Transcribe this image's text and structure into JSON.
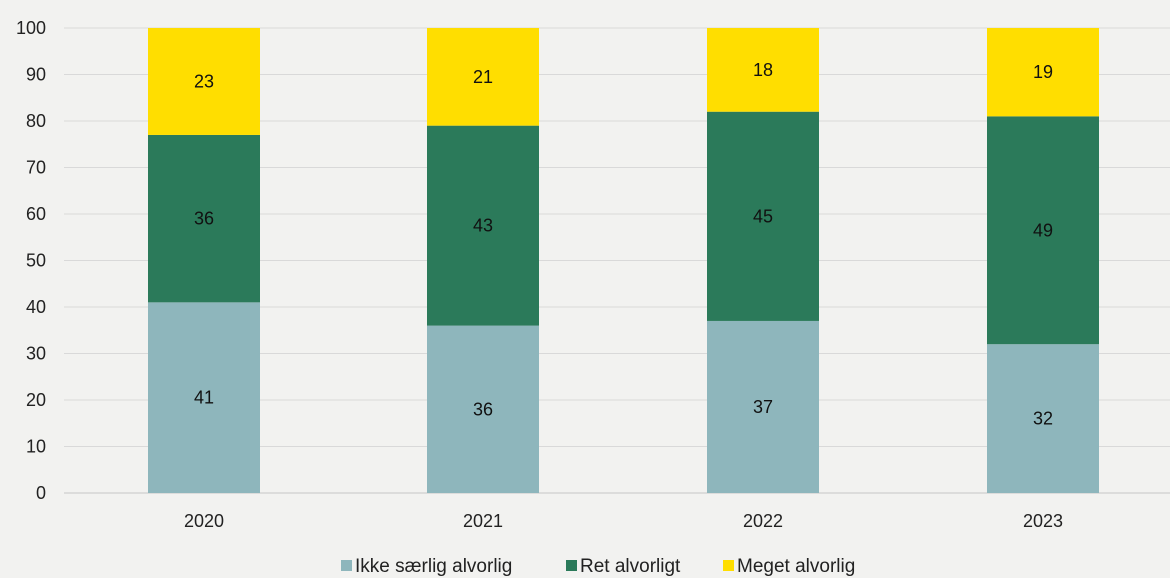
{
  "chart_data": {
    "type": "bar",
    "stacked": true,
    "categories": [
      "2020",
      "2021",
      "2022",
      "2023"
    ],
    "series": [
      {
        "name": "Ikke særlig alvorlig",
        "values": [
          41,
          36,
          37,
          32
        ],
        "color": "#8eb6bc"
      },
      {
        "name": "Ret alvorligt",
        "values": [
          36,
          43,
          45,
          49
        ],
        "color": "#2b7a5a"
      },
      {
        "name": "Meget alvorlig",
        "values": [
          23,
          21,
          18,
          19
        ],
        "color": "#ffde00"
      }
    ],
    "data_labels": [
      [
        "41",
        "36",
        "37",
        "32"
      ],
      [
        "36",
        "43",
        "45",
        "49"
      ],
      [
        "23",
        "21",
        "18",
        "19"
      ]
    ],
    "y_ticks": [
      "0",
      "10",
      "20",
      "30",
      "40",
      "50",
      "60",
      "70",
      "80",
      "90",
      "100"
    ],
    "ylim": [
      0,
      100
    ],
    "grid": true,
    "legend_position": "bottom",
    "title": "",
    "xlabel": "",
    "ylabel": ""
  }
}
